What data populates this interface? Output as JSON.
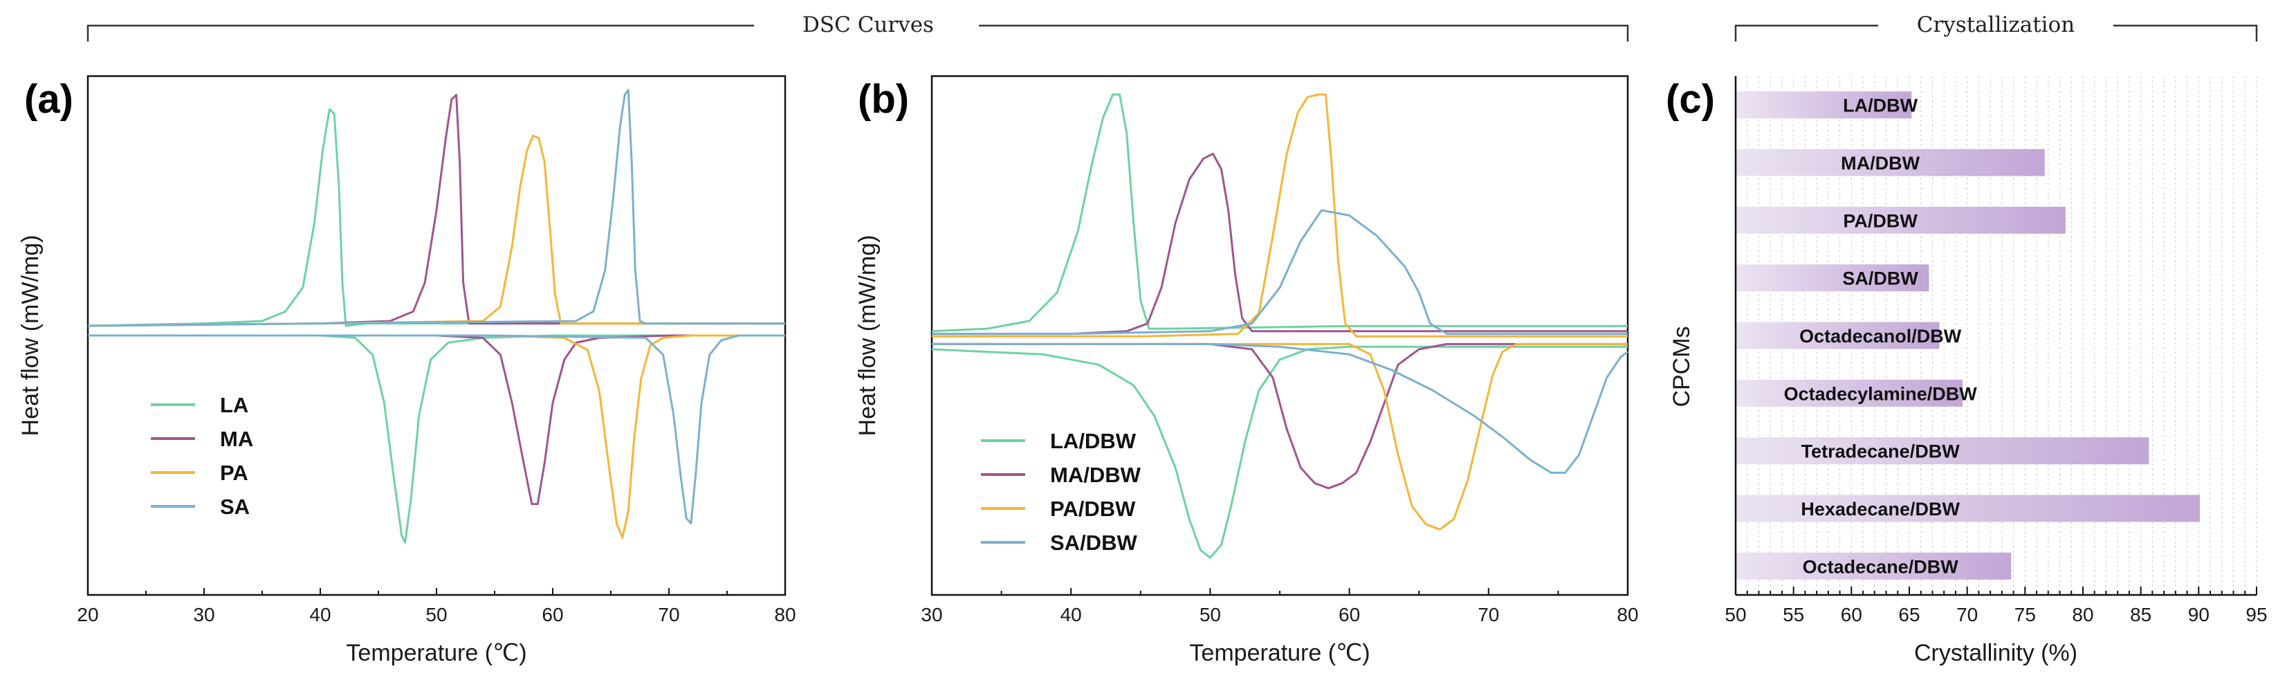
{
  "groups": {
    "dsc_title": "DSC Curves",
    "cryst_title": "Crystallization"
  },
  "chart_data": [
    {
      "panel": "(a)",
      "type": "line",
      "xlabel": "Temperature (℃)",
      "ylabel": "Heat flow (mW/mg)",
      "xlim": [
        20,
        80
      ],
      "xticks": [
        20,
        30,
        40,
        50,
        60,
        70,
        80
      ],
      "legend_position": "bottom-left",
      "series": [
        {
          "name": "LA",
          "color": "#6dd3a0",
          "heating": {
            "x": [
              20,
              30,
              35,
              37,
              38.5,
              39.5,
              40.2,
              40.8,
              41.2,
              41.6,
              41.9,
              42.2,
              44,
              60,
              80
            ],
            "y": [
              0.02,
              0.03,
              0.04,
              0.08,
              0.18,
              0.45,
              0.75,
              0.92,
              0.9,
              0.6,
              0.2,
              0.02,
              0.03,
              0.03,
              0.03
            ]
          },
          "cooling": {
            "x": [
              20,
              30,
              40,
              43,
              44.5,
              45.5,
              46.3,
              47,
              47.3,
              47.8,
              48.5,
              49.5,
              51,
              54,
              60,
              80
            ],
            "y": [
              -0.02,
              -0.02,
              -0.02,
              -0.03,
              -0.1,
              -0.3,
              -0.6,
              -0.85,
              -0.88,
              -0.7,
              -0.35,
              -0.12,
              -0.05,
              -0.03,
              -0.02,
              -0.02
            ]
          }
        },
        {
          "name": "MA",
          "color": "#a0558f",
          "heating": {
            "x": [
              20,
              40,
              46,
              48,
              49,
              50,
              50.8,
              51.3,
              51.7,
              52,
              52.3,
              52.8,
              54,
              60,
              80
            ],
            "y": [
              0.02,
              0.03,
              0.04,
              0.08,
              0.2,
              0.5,
              0.8,
              0.96,
              0.98,
              0.7,
              0.2,
              0.03,
              0.03,
              0.03,
              0.03
            ]
          },
          "cooling": {
            "x": [
              20,
              40,
              50,
              54,
              55.5,
              56.5,
              57.5,
              58.2,
              58.7,
              59.3,
              60,
              61,
              62,
              64,
              70,
              80
            ],
            "y": [
              -0.02,
              -0.02,
              -0.02,
              -0.03,
              -0.1,
              -0.3,
              -0.55,
              -0.72,
              -0.72,
              -0.55,
              -0.3,
              -0.12,
              -0.05,
              -0.03,
              -0.02,
              -0.02
            ]
          }
        },
        {
          "name": "PA",
          "color": "#f5b53a",
          "heating": {
            "x": [
              20,
              40,
              54,
              55.5,
              56.5,
              57.2,
              57.8,
              58.3,
              58.8,
              59.3,
              59.8,
              60.2,
              60.7,
              62,
              70,
              80
            ],
            "y": [
              0.02,
              0.03,
              0.04,
              0.1,
              0.35,
              0.6,
              0.75,
              0.81,
              0.8,
              0.7,
              0.4,
              0.15,
              0.03,
              0.03,
              0.03,
              0.03
            ]
          },
          "cooling": {
            "x": [
              20,
              40,
              55,
              61,
              63,
              64,
              64.8,
              65.5,
              66,
              66.5,
              67,
              67.6,
              68.4,
              69.5,
              72,
              80
            ],
            "y": [
              -0.02,
              -0.02,
              -0.02,
              -0.03,
              -0.08,
              -0.25,
              -0.55,
              -0.8,
              -0.86,
              -0.75,
              -0.45,
              -0.2,
              -0.06,
              -0.03,
              -0.02,
              -0.02
            ]
          }
        },
        {
          "name": "SA",
          "color": "#7bb0cf",
          "heating": {
            "x": [
              20,
              40,
              62,
              63.5,
              64.5,
              65.2,
              65.8,
              66.2,
              66.5,
              66.8,
              67.1,
              67.5,
              68,
              70,
              80
            ],
            "y": [
              0.02,
              0.03,
              0.04,
              0.08,
              0.25,
              0.55,
              0.85,
              0.98,
              1.0,
              0.7,
              0.25,
              0.04,
              0.03,
              0.03,
              0.03
            ]
          },
          "cooling": {
            "x": [
              20,
              40,
              55,
              68,
              69.5,
              70.4,
              71,
              71.5,
              71.9,
              72.3,
              72.8,
              73.5,
              74.5,
              76,
              80
            ],
            "y": [
              -0.02,
              -0.02,
              -0.02,
              -0.03,
              -0.1,
              -0.35,
              -0.6,
              -0.78,
              -0.8,
              -0.6,
              -0.3,
              -0.1,
              -0.04,
              -0.02,
              -0.02
            ]
          }
        }
      ]
    },
    {
      "panel": "(b)",
      "type": "line",
      "xlabel": "Temperature (℃)",
      "ylabel": "Heat flow (mW/mg)",
      "xlim": [
        30,
        80
      ],
      "xticks": [
        30,
        40,
        50,
        60,
        70,
        80
      ],
      "legend_position": "bottom-left",
      "series": [
        {
          "name": "LA/DBW",
          "color": "#6dd3a0",
          "heating": {
            "x": [
              30,
              34,
              37,
              39,
              40.5,
              41.5,
              42.3,
              43,
              43.5,
              44,
              44.5,
              45,
              45.6,
              47,
              60,
              80
            ],
            "y": [
              0.03,
              0.04,
              0.07,
              0.18,
              0.42,
              0.68,
              0.86,
              0.95,
              0.95,
              0.8,
              0.45,
              0.15,
              0.04,
              0.04,
              0.05,
              0.05
            ]
          },
          "cooling": {
            "x": [
              30,
              38,
              42,
              44.5,
              46,
              47.5,
              48.5,
              49.3,
              50,
              50.8,
              51.5,
              52.5,
              53.5,
              55,
              57,
              60,
              70,
              80
            ],
            "y": [
              -0.04,
              -0.06,
              -0.1,
              -0.18,
              -0.3,
              -0.5,
              -0.7,
              -0.82,
              -0.85,
              -0.8,
              -0.65,
              -0.4,
              -0.2,
              -0.08,
              -0.04,
              -0.03,
              -0.03,
              -0.03
            ]
          }
        },
        {
          "name": "MA/DBW",
          "color": "#a0558f",
          "heating": {
            "x": [
              30,
              40,
              44,
              45.5,
              46.5,
              47.5,
              48.5,
              49.5,
              50.2,
              50.8,
              51.3,
              51.8,
              52.3,
              53,
              55,
              60,
              80
            ],
            "y": [
              0.02,
              0.02,
              0.03,
              0.06,
              0.2,
              0.45,
              0.62,
              0.7,
              0.72,
              0.66,
              0.5,
              0.25,
              0.08,
              0.03,
              0.03,
              0.03,
              0.03
            ]
          },
          "cooling": {
            "x": [
              30,
              40,
              50,
              53,
              54.5,
              55.5,
              56.5,
              57.5,
              58.5,
              59.5,
              60.5,
              61.5,
              62.5,
              63.5,
              65,
              67,
              70,
              80
            ],
            "y": [
              -0.02,
              -0.02,
              -0.02,
              -0.04,
              -0.15,
              -0.35,
              -0.5,
              -0.56,
              -0.58,
              -0.56,
              -0.52,
              -0.4,
              -0.25,
              -0.1,
              -0.04,
              -0.02,
              -0.02,
              -0.02
            ]
          }
        },
        {
          "name": "PA/DBW",
          "color": "#f5b53a",
          "heating": {
            "x": [
              30,
              45,
              52,
              53.5,
              54.5,
              55.5,
              56.3,
              57,
              57.8,
              58.3,
              58.7,
              59.2,
              59.7,
              60.5,
              65,
              80
            ],
            "y": [
              0.01,
              0.01,
              0.02,
              0.1,
              0.4,
              0.72,
              0.88,
              0.94,
              0.95,
              0.95,
              0.7,
              0.3,
              0.06,
              0.01,
              0.01,
              0.01
            ]
          },
          "cooling": {
            "x": [
              30,
              50,
              60,
              61.5,
              62.5,
              63.5,
              64.5,
              65.5,
              66.5,
              67.5,
              68.5,
              69.5,
              70.3,
              71,
              72,
              75,
              80
            ],
            "y": [
              -0.02,
              -0.02,
              -0.02,
              -0.06,
              -0.2,
              -0.45,
              -0.65,
              -0.72,
              -0.74,
              -0.7,
              -0.55,
              -0.32,
              -0.14,
              -0.05,
              -0.02,
              -0.02,
              -0.02
            ]
          }
        },
        {
          "name": "SA/DBW",
          "color": "#7bb0cf",
          "heating": {
            "x": [
              30,
              40,
              50,
              53,
              55,
              56.5,
              58,
              60,
              62,
              64,
              65,
              65.8,
              67,
              80
            ],
            "y": [
              0.02,
              0.02,
              0.03,
              0.06,
              0.2,
              0.38,
              0.5,
              0.48,
              0.4,
              0.28,
              0.18,
              0.06,
              0.02,
              0.02
            ]
          },
          "cooling": {
            "x": [
              30,
              40,
              50,
              55,
              60,
              63,
              66,
              69,
              71,
              73,
              74.5,
              75.5,
              76.5,
              77.5,
              78.5,
              79.5,
              80
            ],
            "y": [
              -0.02,
              -0.02,
              -0.02,
              -0.03,
              -0.06,
              -0.12,
              -0.2,
              -0.3,
              -0.38,
              -0.47,
              -0.52,
              -0.52,
              -0.45,
              -0.3,
              -0.15,
              -0.07,
              -0.05
            ]
          }
        }
      ]
    },
    {
      "panel": "(c)",
      "type": "bar",
      "orientation": "horizontal",
      "xlabel": "Crystallinity (%)",
      "ylabel": "CPCMs",
      "xlim": [
        50,
        95
      ],
      "xticks": [
        50,
        55,
        60,
        65,
        70,
        75,
        80,
        85,
        90,
        95
      ],
      "grid": true,
      "bar_color_start": "#ece4f2",
      "bar_color_end": "#c1a6d6",
      "categories": [
        "LA/DBW",
        "MA/DBW",
        "PA/DBW",
        "SA/DBW",
        "Octadecanol/DBW",
        "Octadecylamine/DBW",
        "Tetradecane/DBW",
        "Hexadecane/DBW",
        "Octadecane/DBW"
      ],
      "values": [
        65.2,
        76.7,
        78.5,
        66.7,
        67.6,
        69.6,
        85.7,
        90.1,
        73.8
      ]
    }
  ]
}
